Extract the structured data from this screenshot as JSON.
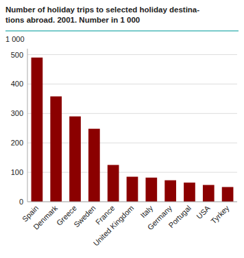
{
  "chart_data": {
    "type": "bar",
    "title": "Number of holiday trips to selected holiday destina-\ntions abroad. 2001. Number in 1 000",
    "y_label": "1 000",
    "categories": [
      "Spain",
      "Denmark",
      "Greece",
      "Sweden",
      "France",
      "United Kingdom",
      "Italy",
      "Germany",
      "Portugal",
      "USA",
      "Tyrkey"
    ],
    "values": [
      490,
      358,
      290,
      248,
      125,
      85,
      82,
      73,
      65,
      57,
      50
    ],
    "color": "#8B0000",
    "ylim": [
      0,
      520
    ],
    "yticks": [
      0,
      100,
      200,
      300,
      400,
      500
    ],
    "grid": true
  }
}
